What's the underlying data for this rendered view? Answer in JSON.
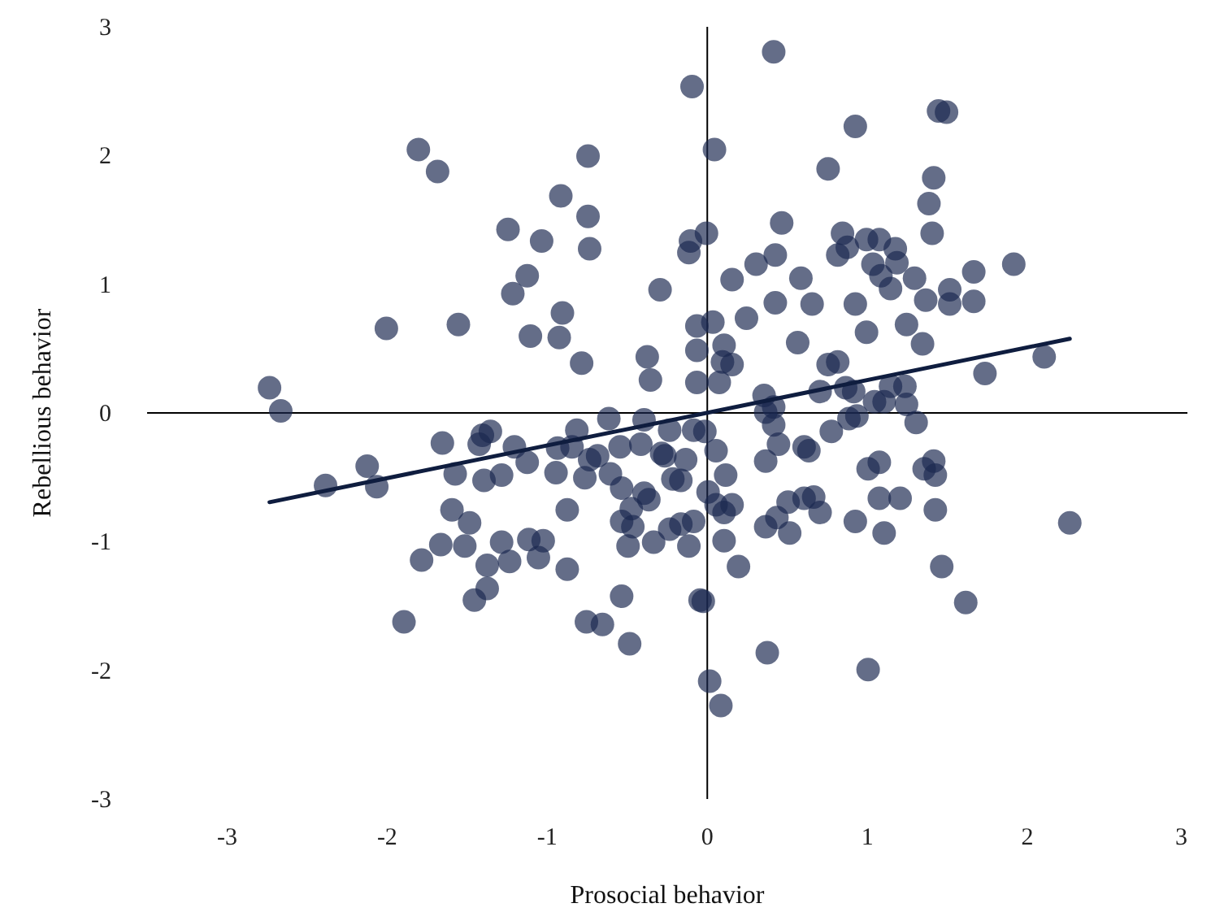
{
  "chart_data": {
    "type": "scatter",
    "xlabel": "Prosocial behavior",
    "ylabel": "Rebellious behavior",
    "xlim": [
      -3.5,
      3
    ],
    "ylim": [
      -3,
      3
    ],
    "xticks": [
      -3,
      -2,
      -1,
      0,
      1,
      2,
      3
    ],
    "yticks": [
      -3,
      -2,
      -1,
      0,
      1,
      2,
      3
    ],
    "marker": "circle",
    "series": [
      {
        "color": "#1b2850",
        "x": [
          -0.09,
          -1.8,
          -1.68,
          -0.74,
          -0.91,
          -0.74,
          -1.24,
          -1.03,
          -0.73,
          -0.1,
          -0.11,
          -1.12,
          -1.21,
          -0.29,
          -0.9,
          -2.0,
          -1.55,
          -1.1,
          -0.92,
          -0.06,
          -0.37,
          -0.06,
          -0.78,
          -0.35,
          -0.06,
          -2.73,
          -2.66,
          0.42,
          0.05,
          0.93,
          1.45,
          1.5,
          0.76,
          1.42,
          1.39,
          1.41,
          0.47,
          0.0,
          0.85,
          1.0,
          1.08,
          1.18,
          0.43,
          0.31,
          0.82,
          0.88,
          1.04,
          1.19,
          1.92,
          1.67,
          1.3,
          1.09,
          1.15,
          0.16,
          0.59,
          1.52,
          1.52,
          1.67,
          1.37,
          0.93,
          0.66,
          0.43,
          0.25,
          0.04,
          1.25,
          1.0,
          0.57,
          1.35,
          0.11,
          0.1,
          0.16,
          0.76,
          0.82,
          2.11,
          1.74,
          0.08,
          0.71,
          0.87,
          0.92,
          1.15,
          1.24,
          1.05,
          1.11,
          1.25,
          0.36,
          0.42,
          -1.65,
          -1.4,
          -1.35,
          -1.42,
          -1.2,
          -0.81,
          -0.61,
          -0.39,
          -0.23,
          -0.08,
          -2.12,
          -2.38,
          -2.06,
          -1.57,
          -1.39,
          -1.28,
          -1.12,
          -0.94,
          -0.93,
          -0.84,
          -0.73,
          -0.68,
          -0.54,
          -0.41,
          -0.28,
          -0.26,
          -0.13,
          -0.76,
          -0.6,
          -0.53,
          -0.21,
          -0.16,
          -0.39,
          -0.36,
          -0.47,
          -0.53,
          -0.46,
          -0.33,
          -0.23,
          -0.16,
          -0.08,
          -0.49,
          -0.11,
          -1.59,
          -1.48,
          -1.66,
          -1.51,
          -1.28,
          -1.11,
          -1.02,
          -1.05,
          -1.23,
          -1.37,
          -1.78,
          -0.87,
          -0.87,
          -1.37,
          -1.45,
          -1.89,
          -0.53,
          -0.75,
          -0.65,
          -0.48,
          -0.04,
          0.37,
          0.42,
          0.78,
          0.89,
          0.94,
          1.31,
          -0.01,
          0.06,
          0.12,
          0.01,
          0.06,
          0.16,
          0.11,
          0.11,
          0.2,
          0.45,
          0.37,
          0.61,
          0.64,
          1.01,
          1.08,
          1.36,
          1.42,
          1.43,
          1.08,
          1.21,
          1.43,
          0.51,
          0.61,
          0.67,
          0.71,
          0.44,
          0.37,
          0.52,
          0.93,
          1.11,
          1.47,
          1.62,
          2.27,
          -0.02,
          0.38,
          1.01,
          0.02,
          0.09
        ],
        "values": [
          2.53,
          2.04,
          1.87,
          1.99,
          1.68,
          1.52,
          1.42,
          1.33,
          1.27,
          1.33,
          1.24,
          1.06,
          0.92,
          0.95,
          0.77,
          0.65,
          0.68,
          0.59,
          0.58,
          0.67,
          0.43,
          0.48,
          0.38,
          0.25,
          0.23,
          0.19,
          0.01,
          2.8,
          2.04,
          2.22,
          2.34,
          2.33,
          1.89,
          1.82,
          1.62,
          1.39,
          1.47,
          1.39,
          1.39,
          1.34,
          1.34,
          1.27,
          1.22,
          1.15,
          1.22,
          1.28,
          1.15,
          1.16,
          1.15,
          1.09,
          1.04,
          1.06,
          0.96,
          1.03,
          1.04,
          0.95,
          0.84,
          0.86,
          0.87,
          0.84,
          0.84,
          0.85,
          0.73,
          0.7,
          0.68,
          0.62,
          0.54,
          0.53,
          0.52,
          0.39,
          0.37,
          0.37,
          0.39,
          0.43,
          0.3,
          0.23,
          0.16,
          0.19,
          0.16,
          0.2,
          0.2,
          0.08,
          0.08,
          0.06,
          0.13,
          0.04,
          -0.24,
          -0.18,
          -0.15,
          -0.25,
          -0.27,
          -0.14,
          -0.05,
          -0.06,
          -0.14,
          -0.14,
          -0.42,
          -0.57,
          -0.58,
          -0.48,
          -0.53,
          -0.49,
          -0.39,
          -0.47,
          -0.28,
          -0.27,
          -0.37,
          -0.34,
          -0.27,
          -0.25,
          -0.32,
          -0.34,
          -0.37,
          -0.51,
          -0.48,
          -0.59,
          -0.52,
          -0.53,
          -0.63,
          -0.68,
          -0.75,
          -0.85,
          -0.89,
          -1.01,
          -0.91,
          -0.87,
          -0.85,
          -1.04,
          -1.04,
          -0.76,
          -0.86,
          -1.03,
          -1.04,
          -1.01,
          -0.99,
          -1.0,
          -1.13,
          -1.16,
          -1.19,
          -1.15,
          -0.76,
          -1.22,
          -1.37,
          -1.46,
          -1.63,
          -1.43,
          -1.63,
          -1.65,
          -1.8,
          -1.46,
          0.0,
          -0.1,
          -0.15,
          -0.05,
          -0.03,
          -0.08,
          -0.15,
          -0.3,
          -0.49,
          -0.62,
          -0.72,
          -0.72,
          -0.78,
          -1.0,
          -1.2,
          -0.25,
          -0.38,
          -0.27,
          -0.3,
          -0.44,
          -0.39,
          -0.44,
          -0.38,
          -0.49,
          -0.67,
          -0.67,
          -0.76,
          -0.7,
          -0.67,
          -0.66,
          -0.78,
          -0.82,
          -0.89,
          -0.94,
          -0.85,
          -0.94,
          -1.2,
          -1.48,
          -0.86,
          -1.47,
          -1.87,
          -2.0,
          -2.09,
          -2.28
        ]
      },
      {
        "type": "line",
        "color": "#0f1d3f",
        "x": [
          -2.73,
          2.27
        ],
        "values": [
          -0.7,
          0.57
        ],
        "line_style": "solid",
        "marker": "none"
      }
    ]
  }
}
